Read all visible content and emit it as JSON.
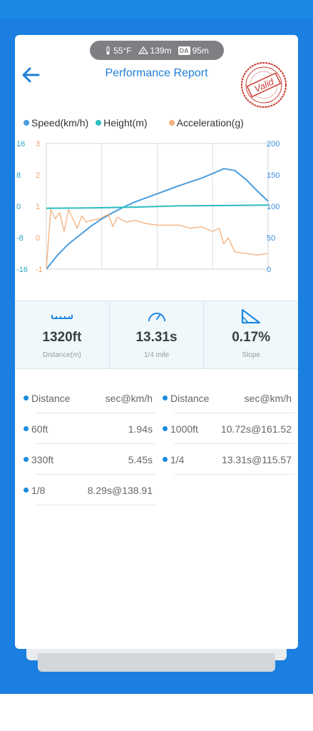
{
  "header": {
    "temperature": "55°F",
    "altitude": "139m",
    "da_badge": "DA",
    "density_altitude": "95m",
    "title": "Performance Report",
    "stamp_text": "Valid"
  },
  "legend": [
    {
      "label": "Speed(km/h)",
      "color": "#4a9ee0"
    },
    {
      "label": "Height(m)",
      "color": "#2bbdc1"
    },
    {
      "label": "Acceleration(g)",
      "color": "#f5b07c"
    }
  ],
  "chart_data": {
    "type": "line",
    "left_axis_height": {
      "ticks": [
        "16",
        "8",
        "0",
        "-8",
        "-16"
      ],
      "ylim": [
        -16,
        16
      ],
      "color": "#2aa6c8"
    },
    "left_axis_accel": {
      "ticks": [
        "3",
        "2",
        "1",
        "0",
        "-1"
      ],
      "ylim": [
        -1,
        3
      ],
      "color": "#f5a062"
    },
    "right_axis_speed": {
      "ticks": [
        "200",
        "150",
        "100",
        "50",
        "0"
      ],
      "ylim": [
        0,
        200
      ],
      "color": "#3a8ee0"
    },
    "series": [
      {
        "name": "Speed(km/h)",
        "color": "#4a9ee0",
        "axis": "speed",
        "x": [
          0,
          0.05,
          0.1,
          0.15,
          0.2,
          0.25,
          0.3,
          0.35,
          0.4,
          0.5,
          0.6,
          0.7,
          0.75,
          0.8,
          0.85,
          0.9,
          0.95,
          1.0
        ],
        "values": [
          0,
          22,
          40,
          54,
          68,
          80,
          90,
          99,
          107,
          120,
          133,
          145,
          152,
          160,
          157,
          143,
          125,
          108
        ]
      },
      {
        "name": "Height(m)",
        "color": "#2bbdc1",
        "axis": "height",
        "x": [
          0,
          0.2,
          0.4,
          0.6,
          0.8,
          1.0
        ],
        "values": [
          -0.5,
          -0.4,
          -0.2,
          0.1,
          0.2,
          0.3
        ]
      },
      {
        "name": "Acceleration(g)",
        "color": "#f5b07c",
        "axis": "accel",
        "x": [
          0,
          0.02,
          0.04,
          0.06,
          0.08,
          0.1,
          0.12,
          0.14,
          0.16,
          0.18,
          0.2,
          0.24,
          0.28,
          0.3,
          0.32,
          0.36,
          0.4,
          0.45,
          0.5,
          0.55,
          0.6,
          0.65,
          0.7,
          0.75,
          0.78,
          0.8,
          0.82,
          0.85,
          0.9,
          0.95,
          1.0
        ],
        "values": [
          -1,
          0.9,
          0.6,
          0.8,
          0.2,
          0.9,
          0.6,
          0.3,
          0.7,
          0.5,
          0.55,
          0.6,
          0.75,
          0.35,
          0.65,
          0.5,
          0.55,
          0.45,
          0.4,
          0.4,
          0.4,
          0.3,
          0.35,
          0.2,
          0.3,
          -0.2,
          0.0,
          -0.45,
          -0.5,
          -0.55,
          -0.5
        ]
      }
    ],
    "xlim": [
      0,
      1
    ],
    "grid": true,
    "legend_position": "top"
  },
  "stats": [
    {
      "value": "1320ft",
      "label": "Distance(m)",
      "icon": "ruler-icon"
    },
    {
      "value": "13.31s",
      "label": "1/4 mile",
      "icon": "speedometer-icon"
    },
    {
      "value": "0.17%",
      "label": "Slope",
      "icon": "slope-icon"
    }
  ],
  "table": {
    "headers": [
      {
        "key": "Distance",
        "value": "sec@km/h"
      },
      {
        "key": "Distance",
        "value": "sec@km/h"
      }
    ],
    "rows": [
      [
        {
          "key": "60ft",
          "value": "1.94s"
        },
        {
          "key": "1000ft",
          "value": "10.72s@161.52"
        }
      ],
      [
        {
          "key": "330ft",
          "value": "5.45s"
        },
        {
          "key": "1/4",
          "value": "13.31s@115.57"
        }
      ],
      [
        {
          "key": "1/8",
          "value": "8.29s@138.91"
        }
      ]
    ]
  }
}
